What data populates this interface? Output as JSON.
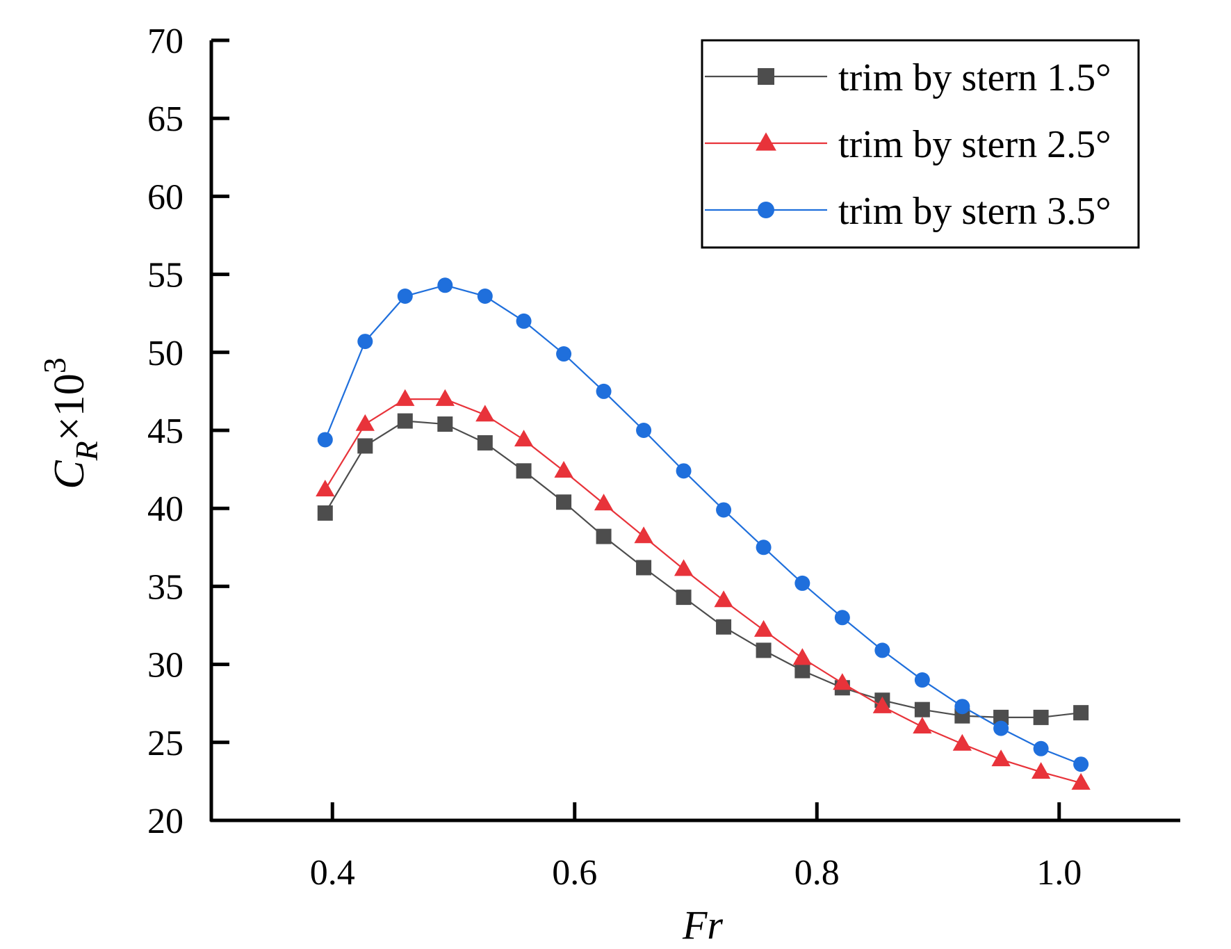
{
  "chart_data": {
    "type": "line",
    "title": "",
    "xlabel": "Fr",
    "ylabel": {
      "base": "C",
      "subscript": "R",
      "rest": "×10",
      "superscript": "3"
    },
    "xlim": [
      0.3,
      1.1
    ],
    "ylim": [
      20,
      70
    ],
    "xticks": [
      0.4,
      0.6,
      0.8,
      1.0
    ],
    "xtick_labels": [
      "0.4",
      "0.6",
      "0.8",
      "1.0"
    ],
    "yticks": [
      20,
      25,
      30,
      35,
      40,
      45,
      50,
      55,
      60,
      65,
      70
    ],
    "ytick_labels": [
      "20",
      "25",
      "30",
      "35",
      "40",
      "45",
      "50",
      "55",
      "60",
      "65",
      "70"
    ],
    "grid": false,
    "legend_position": "top-right",
    "x": [
      0.394,
      0.427,
      0.46,
      0.493,
      0.526,
      0.558,
      0.591,
      0.624,
      0.657,
      0.69,
      0.723,
      0.756,
      0.788,
      0.821,
      0.854,
      0.887,
      0.92,
      0.952,
      0.985,
      1.018
    ],
    "series": [
      {
        "name": "trim by stern 1.5°",
        "color": "#4d4d4d",
        "marker": "square",
        "values": [
          39.7,
          44.0,
          45.6,
          45.4,
          44.2,
          42.4,
          40.4,
          38.2,
          36.2,
          34.3,
          32.4,
          30.9,
          29.6,
          28.5,
          27.7,
          27.1,
          26.7,
          26.6,
          26.6,
          26.9
        ]
      },
      {
        "name": "trim by stern 2.5°",
        "color": "#e8333a",
        "marker": "triangle",
        "values": [
          41.2,
          45.4,
          47.0,
          47.0,
          46.0,
          44.4,
          42.4,
          40.3,
          38.2,
          36.1,
          34.1,
          32.2,
          30.4,
          28.8,
          27.3,
          26.0,
          24.9,
          23.9,
          23.1,
          22.4
        ]
      },
      {
        "name": "trim by stern 3.5°",
        "color": "#1f6fdc",
        "marker": "circle",
        "values": [
          44.4,
          50.7,
          53.6,
          54.3,
          53.6,
          52.0,
          49.9,
          47.5,
          45.0,
          42.4,
          39.9,
          37.5,
          35.2,
          33.0,
          30.9,
          29.0,
          27.3,
          25.9,
          24.6,
          23.6
        ]
      }
    ]
  }
}
